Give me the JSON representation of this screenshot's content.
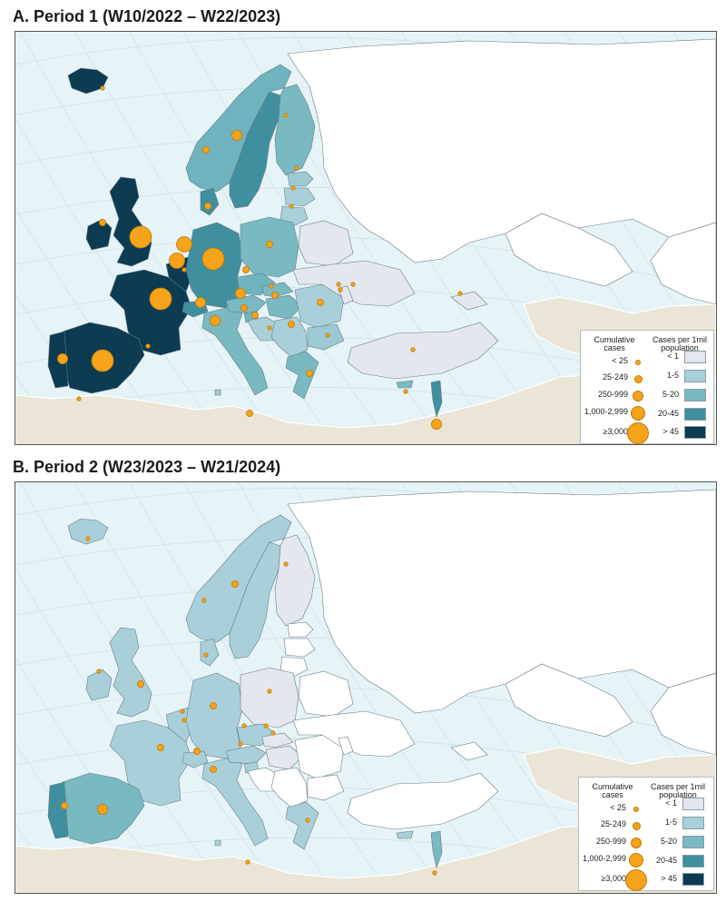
{
  "panels": [
    {
      "title": "A. Period 1 (W10/2022 – W22/2023)",
      "fills": {
        "iceland": "#0c3b52",
        "norway": "#6fb3bf",
        "sweden": "#3f8f9f",
        "finland": "#78b9c2",
        "estonia": "#9cc9d4",
        "latvia": "#a9d0da",
        "lithuania": "#a9d0da",
        "uk": "#0c3b52",
        "ireland": "#0c3b52",
        "denmark": "#3f8f9f",
        "benelux": "#0c3b52",
        "germany": "#3f8f9f",
        "poland": "#78b9c2",
        "france": "#0c3b52",
        "spain": "#0c3b52",
        "portugal": "#0c3b52",
        "switzerland": "#3f8f9f",
        "italy": "#78b9c2",
        "austria": "#78b9c2",
        "czechia": "#6fb3bf",
        "slovakia": "#78b9c2",
        "hungary": "#78b9c2",
        "slovenia": "#6fb3bf",
        "croatia": "#a9d0da",
        "balkans": "#a9d0da",
        "romania": "#a9d0da",
        "bulgaria": "#9cc9d4",
        "greece": "#78b9c2",
        "belarus": "#e4e7ee",
        "ukraine": "#e4e7ee",
        "moldova": "#e4e7ee",
        "turkey": "#e4e7ee",
        "israel": "#3f8f9f",
        "cyprus": "#78b9c2",
        "malta": "#9cc9d4",
        "georgia": "#e4e7ee"
      },
      "bubbles": [
        {
          "country": "iceland",
          "size": "lt25"
        },
        {
          "country": "norway",
          "size": "c25"
        },
        {
          "country": "sweden",
          "size": "c250"
        },
        {
          "country": "finland",
          "size": "lt25"
        },
        {
          "country": "estonia",
          "size": "lt25"
        },
        {
          "country": "latvia",
          "size": "lt25"
        },
        {
          "country": "lithuania",
          "size": "lt25"
        },
        {
          "country": "denmark",
          "size": "c25"
        },
        {
          "country": "uk",
          "size": "c3000"
        },
        {
          "country": "ireland",
          "size": "c25"
        },
        {
          "country": "netherlands",
          "size": "c1000"
        },
        {
          "country": "belgium",
          "size": "c1000"
        },
        {
          "country": "luxembourg",
          "size": "lt25"
        },
        {
          "country": "germany",
          "size": "c3000"
        },
        {
          "country": "poland",
          "size": "c25"
        },
        {
          "country": "france",
          "size": "c3000"
        },
        {
          "country": "spain",
          "size": "c3000"
        },
        {
          "country": "portugal",
          "size": "c250"
        },
        {
          "country": "switzerland",
          "size": "c250"
        },
        {
          "country": "italy",
          "size": "c250"
        },
        {
          "country": "austria",
          "size": "c250"
        },
        {
          "country": "czechia",
          "size": "c25"
        },
        {
          "country": "slovakia",
          "size": "lt25"
        },
        {
          "country": "hungary",
          "size": "c25"
        },
        {
          "country": "slovenia",
          "size": "c25"
        },
        {
          "country": "croatia",
          "size": "c25"
        },
        {
          "country": "serbia",
          "size": "c25"
        },
        {
          "country": "romania",
          "size": "c25"
        },
        {
          "country": "bulgaria",
          "size": "lt25"
        },
        {
          "country": "greece",
          "size": "c25"
        },
        {
          "country": "malta",
          "size": "c25"
        },
        {
          "country": "cyprus",
          "size": "lt25"
        },
        {
          "country": "israel",
          "size": "c250"
        },
        {
          "country": "ukraine",
          "size": "lt25"
        },
        {
          "country": "turkey",
          "size": "lt25"
        },
        {
          "country": "moldova",
          "size": "lt25"
        },
        {
          "country": "belarus",
          "size": "lt25"
        },
        {
          "country": "georgia",
          "size": "lt25"
        },
        {
          "country": "bosnia",
          "size": "lt25"
        },
        {
          "country": "gibraltar",
          "size": "lt25"
        },
        {
          "country": "morocco",
          "size": "lt25"
        }
      ]
    },
    {
      "title": "B. Period 2 (W23/2023 – W21/2024)",
      "fills": {
        "iceland": "#a9d0da",
        "norway": "#a9d0da",
        "sweden": "#a9d0da",
        "finland": "#e4e7ee",
        "estonia": "#ffffff",
        "latvia": "#ffffff",
        "lithuania": "#ffffff",
        "uk": "#a9d0da",
        "ireland": "#a9d0da",
        "denmark": "#a9d0da",
        "benelux": "#a9d0da",
        "germany": "#a9d0da",
        "poland": "#e4e7ee",
        "france": "#a9d0da",
        "spain": "#78b9c2",
        "portugal": "#3f8f9f",
        "switzerland": "#a9d0da",
        "italy": "#a9d0da",
        "austria": "#a9d0da",
        "czechia": "#a9d0da",
        "slovakia": "#e4e7ee",
        "hungary": "#e4e7ee",
        "slovenia": "#a9d0da",
        "croatia": "#ffffff",
        "balkans": "#ffffff",
        "romania": "#ffffff",
        "bulgaria": "#ffffff",
        "greece": "#a9d0da",
        "belarus": "#ffffff",
        "ukraine": "#ffffff",
        "moldova": "#ffffff",
        "turkey": "#ffffff",
        "israel": "#78b9c2",
        "cyprus": "#a9d0da",
        "malta": "#a9d0da",
        "georgia": "#ffffff"
      },
      "bubbles": [
        {
          "country": "iceland",
          "size": "lt25"
        },
        {
          "country": "norway",
          "size": "lt25"
        },
        {
          "country": "sweden",
          "size": "c25"
        },
        {
          "country": "finland",
          "size": "lt25"
        },
        {
          "country": "denmark",
          "size": "lt25"
        },
        {
          "country": "uk",
          "size": "c25"
        },
        {
          "country": "ireland",
          "size": "lt25"
        },
        {
          "country": "netherlands",
          "size": "lt25"
        },
        {
          "country": "belgium",
          "size": "lt25"
        },
        {
          "country": "germany",
          "size": "c25"
        },
        {
          "country": "poland",
          "size": "lt25"
        },
        {
          "country": "france",
          "size": "c25"
        },
        {
          "country": "spain",
          "size": "c250"
        },
        {
          "country": "portugal",
          "size": "c25"
        },
        {
          "country": "switzerland",
          "size": "c25"
        },
        {
          "country": "italy",
          "size": "c25"
        },
        {
          "country": "austria",
          "size": "lt25"
        },
        {
          "country": "czechia",
          "size": "lt25"
        },
        {
          "country": "hungary",
          "size": "lt25"
        },
        {
          "country": "slovakia",
          "size": "lt25"
        },
        {
          "country": "greece",
          "size": "lt25"
        },
        {
          "country": "malta",
          "size": "lt25"
        },
        {
          "country": "israel",
          "size": "lt25"
        }
      ]
    }
  ],
  "legend": {
    "cumulative_header": "Cumulative cases",
    "rate_header": "Cases per 1mil population",
    "case_classes": [
      {
        "id": "lt25",
        "label": "< 25"
      },
      {
        "id": "c25",
        "label": "25-249"
      },
      {
        "id": "c250",
        "label": "250-999"
      },
      {
        "id": "c1000",
        "label": "1,000-2,999"
      },
      {
        "id": "c3000",
        "label": "≥3,000"
      }
    ],
    "rate_classes": [
      {
        "label": "< 1",
        "color": "#e4e7ee"
      },
      {
        "label": "1-5",
        "color": "#a9d0da"
      },
      {
        "label": "5-20",
        "color": "#78b9c2"
      },
      {
        "label": "20-45",
        "color": "#3f8f9f"
      },
      {
        "label": "> 45",
        "color": "#0c3b52"
      }
    ]
  },
  "colors": {
    "sea": "#e6f3f7",
    "land_other": "#ebe5d8",
    "no_data": "#ffffff",
    "bubble": "#f5a31a",
    "bubble_stroke": "#c07c0a",
    "border": "#6b7c85"
  }
}
